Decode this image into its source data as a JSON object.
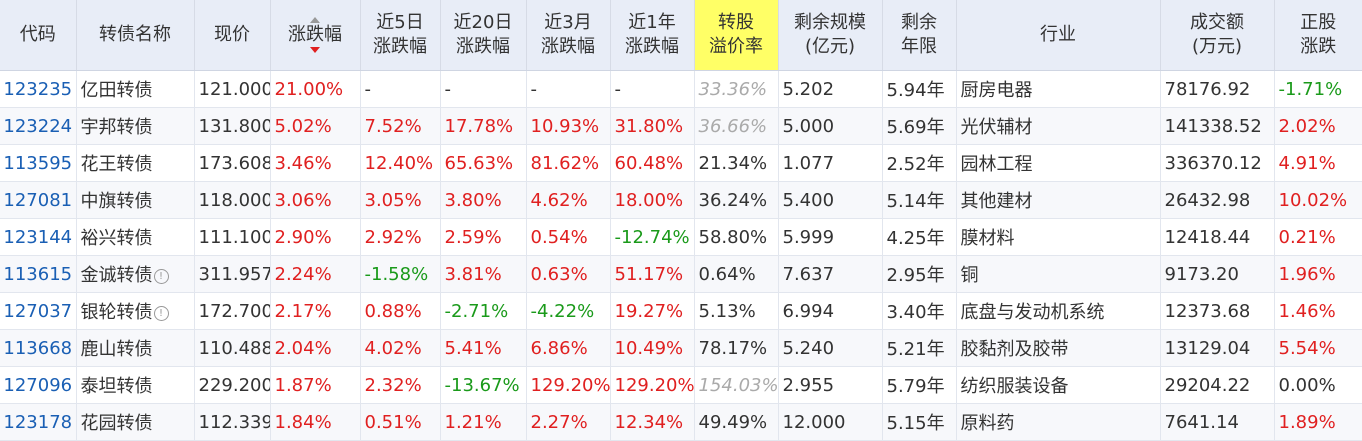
{
  "headers": {
    "code": "代码",
    "name": "转债名称",
    "price": "现价",
    "change": "涨跌幅",
    "chg5d": [
      "近5日",
      "涨跌幅"
    ],
    "chg20d": [
      "近20日",
      "涨跌幅"
    ],
    "chg3m": [
      "近3月",
      "涨跌幅"
    ],
    "chg1y": [
      "近1年",
      "涨跌幅"
    ],
    "premium": [
      "转股",
      "溢价率"
    ],
    "size": [
      "剩余规模",
      "(亿元)"
    ],
    "years": [
      "剩余",
      "年限"
    ],
    "industry": "行业",
    "turnover": [
      "成交额",
      "(万元)"
    ],
    "stock_chg": [
      "正股",
      "涨跌"
    ]
  },
  "colors": {
    "up": "#e02020",
    "down": "#1a9a1a",
    "link": "#1a5fb4",
    "header_bg": "#e8edf7",
    "highlight": "#ffff66"
  },
  "rows": [
    {
      "code": "123235",
      "name": "亿田转债",
      "info": false,
      "price": "121.000",
      "change": "21.00%",
      "chg5d": "-",
      "chg20d": "-",
      "chg3m": "-",
      "chg1y": "-",
      "premium": "33.36%",
      "premium_gray": true,
      "size": "5.202",
      "years": "5.94年",
      "industry": "厨房电器",
      "turnover": "78176.92",
      "stock_chg": "-1.71%"
    },
    {
      "code": "123224",
      "name": "宇邦转债",
      "info": false,
      "price": "131.800",
      "change": "5.02%",
      "chg5d": "7.52%",
      "chg20d": "17.78%",
      "chg3m": "10.93%",
      "chg1y": "31.80%",
      "premium": "36.66%",
      "premium_gray": true,
      "size": "5.000",
      "years": "5.69年",
      "industry": "光伏辅材",
      "turnover": "141338.52",
      "stock_chg": "2.02%"
    },
    {
      "code": "113595",
      "name": "花王转债",
      "info": false,
      "price": "173.608",
      "change": "3.46%",
      "chg5d": "12.40%",
      "chg20d": "65.63%",
      "chg3m": "81.62%",
      "chg1y": "60.48%",
      "premium": "21.34%",
      "premium_gray": false,
      "size": "1.077",
      "years": "2.52年",
      "industry": "园林工程",
      "turnover": "336370.12",
      "stock_chg": "4.91%"
    },
    {
      "code": "127081",
      "name": "中旗转债",
      "info": false,
      "price": "118.000",
      "change": "3.06%",
      "chg5d": "3.05%",
      "chg20d": "3.80%",
      "chg3m": "4.62%",
      "chg1y": "18.00%",
      "premium": "36.24%",
      "premium_gray": false,
      "size": "5.400",
      "years": "5.14年",
      "industry": "其他建材",
      "turnover": "26432.98",
      "stock_chg": "10.02%"
    },
    {
      "code": "123144",
      "name": "裕兴转债",
      "info": false,
      "price": "111.100",
      "change": "2.90%",
      "chg5d": "2.92%",
      "chg20d": "2.59%",
      "chg3m": "0.54%",
      "chg1y": "-12.74%",
      "premium": "58.80%",
      "premium_gray": false,
      "size": "5.999",
      "years": "4.25年",
      "industry": "膜材料",
      "turnover": "12418.44",
      "stock_chg": "0.21%"
    },
    {
      "code": "113615",
      "name": "金诚转债",
      "info": true,
      "price": "311.957",
      "change": "2.24%",
      "chg5d": "-1.58%",
      "chg20d": "3.81%",
      "chg3m": "0.63%",
      "chg1y": "51.17%",
      "premium": "0.64%",
      "premium_gray": false,
      "size": "7.637",
      "years": "2.95年",
      "industry": "铜",
      "turnover": "9173.20",
      "stock_chg": "1.96%"
    },
    {
      "code": "127037",
      "name": "银轮转债",
      "info": true,
      "price": "172.700",
      "change": "2.17%",
      "chg5d": "0.88%",
      "chg20d": "-2.71%",
      "chg3m": "-4.22%",
      "chg1y": "19.27%",
      "premium": "5.13%",
      "premium_gray": false,
      "size": "6.994",
      "years": "3.40年",
      "industry": "底盘与发动机系统",
      "turnover": "12373.68",
      "stock_chg": "1.46%"
    },
    {
      "code": "113668",
      "name": "鹿山转债",
      "info": false,
      "price": "110.488",
      "change": "2.04%",
      "chg5d": "4.02%",
      "chg20d": "5.41%",
      "chg3m": "6.86%",
      "chg1y": "10.49%",
      "premium": "78.17%",
      "premium_gray": false,
      "size": "5.240",
      "years": "5.21年",
      "industry": "胶黏剂及胶带",
      "turnover": "13129.04",
      "stock_chg": "5.54%"
    },
    {
      "code": "127096",
      "name": "泰坦转债",
      "info": false,
      "price": "229.200",
      "change": "1.87%",
      "chg5d": "2.32%",
      "chg20d": "-13.67%",
      "chg3m": "129.20%",
      "chg1y": "129.20%",
      "premium": "154.03%",
      "premium_gray": true,
      "size": "2.955",
      "years": "5.79年",
      "industry": "纺织服装设备",
      "turnover": "29204.22",
      "stock_chg": "0.00%"
    },
    {
      "code": "123178",
      "name": "花园转债",
      "info": false,
      "price": "112.339",
      "change": "1.84%",
      "chg5d": "0.51%",
      "chg20d": "1.21%",
      "chg3m": "2.27%",
      "chg1y": "12.34%",
      "premium": "49.49%",
      "premium_gray": false,
      "size": "12.000",
      "years": "5.15年",
      "industry": "原料药",
      "turnover": "7641.14",
      "stock_chg": "1.89%"
    }
  ]
}
